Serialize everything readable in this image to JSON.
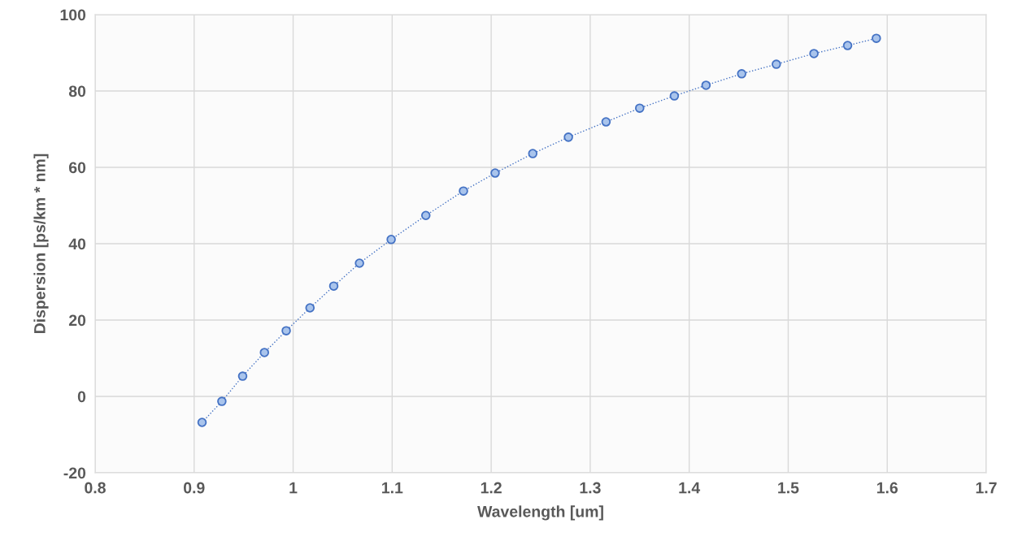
{
  "chart_data": {
    "type": "line",
    "xlabel": "Wavelength [um]",
    "ylabel": "Dispersion [ps/km * nm]",
    "x": [
      0.908,
      0.928,
      0.949,
      0.971,
      0.993,
      1.017,
      1.041,
      1.067,
      1.099,
      1.134,
      1.172,
      1.204,
      1.242,
      1.278,
      1.316,
      1.35,
      1.385,
      1.417,
      1.453,
      1.488,
      1.526,
      1.56,
      1.589
    ],
    "series": [
      {
        "color": "#4472c4",
        "values": [
          -6.8,
          -1.3,
          5.3,
          11.5,
          17.2,
          23.2,
          28.9,
          34.9,
          41.1,
          47.4,
          53.8,
          58.5,
          63.6,
          67.9,
          71.9,
          75.5,
          78.7,
          81.5,
          84.5,
          87.0,
          89.8,
          91.9,
          93.8
        ]
      }
    ],
    "xlim": [
      0.8,
      1.7
    ],
    "xticks": [
      0.8,
      0.9,
      1,
      1.1,
      1.2,
      1.3,
      1.4,
      1.5,
      1.6,
      1.7
    ],
    "ylim": [
      -20,
      100
    ],
    "yticks": [
      -20,
      0,
      20,
      40,
      60,
      80,
      100
    ],
    "grid": true,
    "marker": "circle",
    "line_style": "dotted"
  }
}
